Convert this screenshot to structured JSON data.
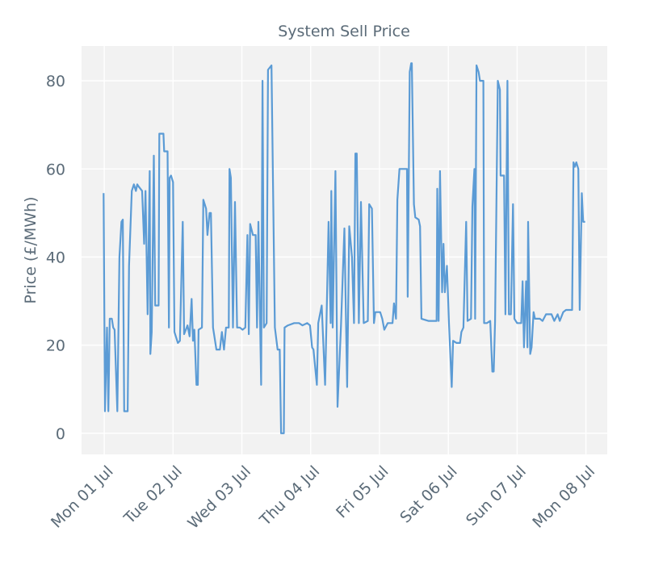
{
  "chart_data": {
    "type": "line",
    "title": "System Sell Price",
    "y_label": "Price (£/MWh)",
    "x": [
      -0.01,
      0.01,
      0.04,
      0.06,
      0.08,
      0.11,
      0.13,
      0.15,
      0.19,
      0.22,
      0.25,
      0.27,
      0.29,
      0.34,
      0.36,
      0.4,
      0.43,
      0.46,
      0.48,
      0.5,
      0.55,
      0.58,
      0.6,
      0.63,
      0.66,
      0.67,
      0.69,
      0.72,
      0.74,
      0.79,
      0.8,
      0.86,
      0.87,
      0.92,
      0.94,
      0.95,
      0.97,
      1.0,
      1.02,
      1.04,
      1.07,
      1.1,
      1.14,
      1.16,
      1.21,
      1.24,
      1.27,
      1.29,
      1.31,
      1.34,
      1.36,
      1.37,
      1.42,
      1.44,
      1.48,
      1.5,
      1.53,
      1.55,
      1.58,
      1.63,
      1.68,
      1.71,
      1.74,
      1.77,
      1.81,
      1.82,
      1.84,
      1.87,
      1.9,
      1.93,
      1.97,
      2.01,
      2.05,
      2.08,
      2.1,
      2.12,
      2.16,
      2.2,
      2.22,
      2.24,
      2.28,
      2.3,
      2.32,
      2.36,
      2.38,
      2.43,
      2.48,
      2.52,
      2.55,
      2.57,
      2.61,
      2.62,
      2.67,
      2.76,
      2.83,
      2.88,
      2.95,
      2.99,
      3.02,
      3.04,
      3.09,
      3.11,
      3.16,
      3.21,
      3.23,
      3.26,
      3.29,
      3.3,
      3.32,
      3.36,
      3.39,
      3.44,
      3.49,
      3.53,
      3.56,
      3.6,
      3.63,
      3.65,
      3.67,
      3.7,
      3.73,
      3.77,
      3.83,
      3.85,
      3.89,
      3.92,
      3.94,
      4.01,
      4.04,
      4.07,
      4.12,
      4.19,
      4.21,
      4.24,
      4.26,
      4.29,
      4.36,
      4.4,
      4.41,
      4.44,
      4.46,
      4.47,
      4.5,
      4.52,
      4.57,
      4.59,
      4.61,
      4.71,
      4.8,
      4.83,
      4.84,
      4.86,
      4.88,
      4.91,
      4.93,
      4.95,
      4.98,
      5.01,
      5.05,
      5.07,
      5.12,
      5.17,
      5.19,
      5.22,
      5.26,
      5.28,
      5.33,
      5.35,
      5.38,
      5.39,
      5.41,
      5.44,
      5.46,
      5.51,
      5.52,
      5.56,
      5.61,
      5.64,
      5.66,
      5.68,
      5.72,
      5.75,
      5.76,
      5.81,
      5.83,
      5.86,
      5.88,
      5.91,
      5.94,
      5.96,
      6.0,
      6.06,
      6.08,
      6.1,
      6.13,
      6.15,
      6.16,
      6.19,
      6.21,
      6.24,
      6.26,
      6.33,
      6.37,
      6.42,
      6.5,
      6.54,
      6.59,
      6.62,
      6.67,
      6.71,
      6.8,
      6.82,
      6.84,
      6.86,
      6.89,
      6.91,
      6.94,
      6.96,
      6.99
    ],
    "series": [
      {
        "name": "System Sell Price",
        "color": "#5b9bd5",
        "values": [
          54.5,
          5,
          24,
          5,
          26,
          26,
          24,
          23.5,
          5,
          40,
          48,
          48.5,
          5,
          5,
          38,
          55,
          56.5,
          55,
          56.5,
          56,
          55,
          43,
          55,
          27,
          59.5,
          18,
          23,
          63,
          29,
          29,
          68,
          68,
          64,
          64,
          24,
          58,
          58.5,
          57,
          23,
          22,
          20.5,
          21,
          48,
          22.5,
          24.5,
          22,
          30.5,
          21,
          23.5,
          11,
          11,
          23.5,
          24,
          53,
          51,
          45,
          50,
          50,
          24,
          19,
          19,
          23,
          19,
          24,
          24,
          60,
          58,
          24,
          52.5,
          24,
          24,
          23.5,
          24,
          45,
          22.5,
          47.5,
          45,
          45,
          24,
          48,
          11,
          80,
          24,
          25,
          82.5,
          83.5,
          24,
          19,
          19,
          0,
          0,
          24,
          24.5,
          25,
          25,
          24.5,
          25,
          24.5,
          19.5,
          19,
          11,
          25,
          29,
          11,
          25,
          48,
          25,
          55,
          24,
          59.5,
          6,
          24,
          46.5,
          10.5,
          47,
          40,
          25,
          63.5,
          63.5,
          25,
          52.5,
          25,
          25.5,
          52,
          51,
          25,
          27.5,
          27.5,
          26,
          23.5,
          25,
          25,
          29.5,
          26,
          53,
          60,
          60,
          60,
          31,
          82,
          84,
          84,
          52,
          49,
          48.5,
          47,
          26,
          25.5,
          25.5,
          25.5,
          55.5,
          25.5,
          59.5,
          32,
          43,
          32,
          38,
          25,
          10.5,
          21,
          20.5,
          20.5,
          23,
          24,
          48,
          25.5,
          26,
          51.5,
          60,
          26,
          83.5,
          82,
          80,
          80,
          25,
          25,
          25.5,
          14,
          14,
          25.5,
          80,
          78,
          58.5,
          58.5,
          27,
          80,
          27,
          27,
          52,
          26,
          25,
          25,
          34.5,
          19.5,
          34.5,
          19.5,
          48,
          18,
          19.5,
          27.5,
          26,
          26,
          25.5,
          27,
          27,
          25.5,
          27,
          25.5,
          27.5,
          28,
          28,
          61.5,
          60.5,
          61.5,
          60,
          28,
          54.5,
          48,
          48
        ]
      }
    ],
    "xlim": [
      -0.33,
      7.31
    ],
    "xticks": [
      {
        "value": 0,
        "label": "Mon 01 Jul"
      },
      {
        "value": 1,
        "label": "Tue 02 Jul"
      },
      {
        "value": 2,
        "label": "Wed 03 Jul"
      },
      {
        "value": 3,
        "label": "Thu 04 Jul"
      },
      {
        "value": 4,
        "label": "Fri 05 Jul"
      },
      {
        "value": 5,
        "label": "Sat 06 Jul"
      },
      {
        "value": 6,
        "label": "Sun 07 Jul"
      },
      {
        "value": 7,
        "label": "Mon 08 Jul"
      }
    ],
    "ylim": [
      -4.8,
      87.9
    ],
    "yticks": [
      0,
      20,
      40,
      60,
      80
    ],
    "grid": true
  }
}
